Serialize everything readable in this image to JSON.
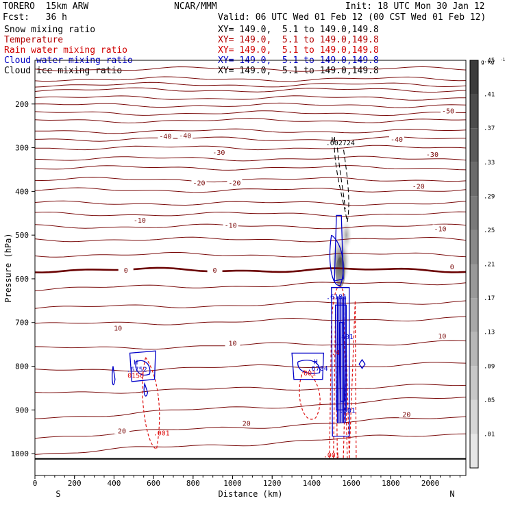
{
  "header": {
    "model": "TORERO  15km ARW",
    "center": "NCAR/MMM",
    "init": "Init: 18 UTC Mon 30 Jan 12",
    "fcst": "Fcst:   36 h",
    "valid": "Valid: 06 UTC Wed 01 Feb 12 (00 CST Wed 01 Feb 12)"
  },
  "legend": [
    {
      "label": "Snow mixing ratio",
      "xy": "XY= 149.0,  5.1 to 149.0,149.8",
      "color": "#000000"
    },
    {
      "label": "Temperature",
      "xy": "XY= 149.0,  5.1 to 149.0,149.8",
      "color": "#b00000"
    },
    {
      "label": "Rain water mixing ratio",
      "xy": "XY= 149.0,  5.1 to 149.0,149.8",
      "color": "#d00000"
    },
    {
      "label": "Cloud water mixing ratio",
      "xy": "XY= 149.0,  5.1 to 149.0,149.8",
      "color": "#0000c0"
    },
    {
      "label": "Cloud ice mixing ratio",
      "xy": "XY= 149.0,  5.1 to 149.0,149.8",
      "color": "#000000"
    }
  ],
  "colors": {
    "temperature": "#7a0a0a",
    "freezing": "#6a0000",
    "rain": "#dd1111",
    "cloud_water": "#0000c8",
    "ice": "#000000"
  },
  "chart_data": {
    "type": "cross-section",
    "xlabel": "Distance (km)",
    "ylabel": "Pressure (hPa)",
    "xlim": [
      0,
      2180
    ],
    "ylim": [
      1050,
      100
    ],
    "xticks": [
      0,
      200,
      400,
      600,
      800,
      1000,
      1200,
      1400,
      1600,
      1800,
      2000
    ],
    "yticks": [
      200,
      300,
      400,
      500,
      600,
      700,
      800,
      900,
      1000
    ],
    "x_end_labels": {
      "left": "S",
      "right": "N"
    },
    "temperature_contour_labels": [
      {
        "text": "-50",
        "x": 2090,
        "p": 215
      },
      {
        "text": "-40",
        "x": 660,
        "p": 273
      },
      {
        "text": "-40",
        "x": 760,
        "p": 272
      },
      {
        "text": "-40",
        "x": 1830,
        "p": 280
      },
      {
        "text": "-30",
        "x": 930,
        "p": 310
      },
      {
        "text": "-30",
        "x": 2010,
        "p": 315
      },
      {
        "text": "-20",
        "x": 830,
        "p": 380
      },
      {
        "text": "-20",
        "x": 1010,
        "p": 380
      },
      {
        "text": "-20",
        "x": 1940,
        "p": 388
      },
      {
        "text": "-10",
        "x": 530,
        "p": 465
      },
      {
        "text": "-10",
        "x": 990,
        "p": 477
      },
      {
        "text": "-10",
        "x": 2050,
        "p": 485
      },
      {
        "text": "0",
        "x": 460,
        "p": 580
      },
      {
        "text": "0",
        "x": 910,
        "p": 580
      },
      {
        "text": "0",
        "x": 2110,
        "p": 572
      },
      {
        "text": "10",
        "x": 420,
        "p": 712
      },
      {
        "text": "10",
        "x": 1000,
        "p": 747
      },
      {
        "text": "10",
        "x": 2060,
        "p": 730
      },
      {
        "text": "20",
        "x": 440,
        "p": 947
      },
      {
        "text": "20",
        "x": 1070,
        "p": 930
      },
      {
        "text": "20",
        "x": 1880,
        "p": 910
      }
    ],
    "temperature_lines_at_left_hPa": [
      120,
      143,
      156,
      168,
      186,
      203,
      221,
      238,
      262,
      280,
      300,
      325,
      346,
      373,
      397,
      427,
      452,
      480,
      510,
      545,
      580,
      623,
      667,
      705,
      760,
      810,
      860,
      918,
      962,
      1000
    ],
    "maxima_labels": [
      {
        "text": "H",
        "x": 510,
        "p": 790,
        "color": "#0000c8"
      },
      {
        "text": ".6752",
        "x": 515,
        "p": 806,
        "color": "#0000c8"
      },
      {
        "text": "0150",
        "x": 510,
        "p": 820,
        "color": "#dd1111"
      },
      {
        "text": "H",
        "x": 1420,
        "p": 789,
        "color": "#0000c8"
      },
      {
        "text": ".6784",
        "x": 1430,
        "p": 804,
        "color": "#0000c8"
      },
      {
        "text": ".001",
        "x": 1380,
        "p": 815,
        "color": "#dd1111"
      },
      {
        "text": "H",
        "x": 1510,
        "p": 280,
        "color": "#000000"
      },
      {
        "text": ".002724",
        "x": 1545,
        "p": 288,
        "color": "#000000"
      },
      {
        "text": ".6181",
        "x": 1525,
        "p": 640,
        "color": "#0000c8"
      },
      {
        "text": ".401",
        "x": 1570,
        "p": 732,
        "color": "#0000c8"
      },
      {
        "text": ".4",
        "x": 1520,
        "p": 768,
        "color": "#dd1111"
      },
      {
        "text": ".001",
        "x": 1580,
        "p": 900,
        "color": "#0000c8"
      },
      {
        "text": ".001",
        "x": 640,
        "p": 952,
        "color": "#dd1111"
      },
      {
        "text": ".001",
        "x": 1500,
        "p": 1002,
        "color": "#dd1111"
      }
    ],
    "colorbar": {
      "unit": "g kg",
      "unit_exp": "-1",
      "levels": [
        ".01",
        ".05",
        ".09",
        ".13",
        ".17",
        ".21",
        ".25",
        ".29",
        ".33",
        ".37",
        ".41",
        ".45"
      ]
    }
  }
}
